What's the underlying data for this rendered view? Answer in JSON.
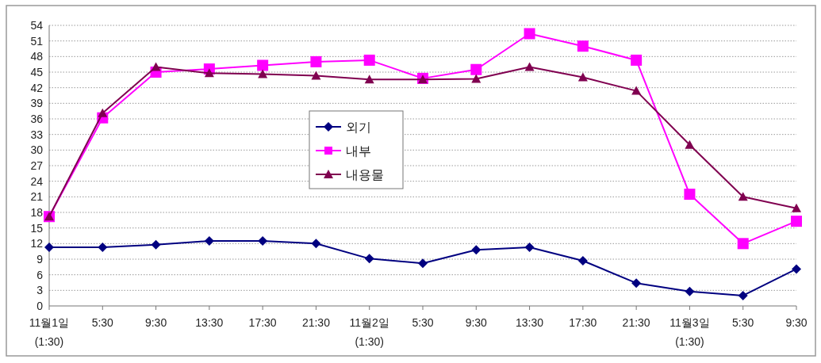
{
  "chart_data": {
    "type": "line",
    "categories": [
      "11월1일 (1:30)",
      "5:30",
      "9:30",
      "13:30",
      "17:30",
      "21:30",
      "11월2일 (1:30)",
      "5:30",
      "9:30",
      "13:30",
      "17:30",
      "21:30",
      "11월3일 (1:30)",
      "5:30",
      "9:30"
    ],
    "series": [
      {
        "name": "외기",
        "color": "#000080",
        "marker": "diamond",
        "values": [
          11.3,
          11.3,
          11.8,
          12.5,
          12.5,
          12.0,
          9.1,
          8.2,
          10.8,
          11.3,
          8.7,
          4.4,
          2.8,
          2.0,
          7.1
        ]
      },
      {
        "name": "내부",
        "color": "#ff00ff",
        "marker": "square",
        "values": [
          17.2,
          36.2,
          45.0,
          45.6,
          46.3,
          47.0,
          47.3,
          43.8,
          45.5,
          52.4,
          50.0,
          47.3,
          21.5,
          12.0,
          16.3
        ]
      },
      {
        "name": "내용물",
        "color": "#800050",
        "marker": "triangle",
        "values": [
          17.2,
          37.1,
          46.0,
          44.8,
          44.6,
          44.3,
          43.6,
          43.6,
          43.7,
          46.0,
          44.0,
          41.4,
          31.0,
          21.0,
          18.8
        ]
      }
    ],
    "ylim": [
      0,
      54
    ],
    "yticks": [
      0,
      3,
      6,
      9,
      12,
      15,
      18,
      21,
      24,
      27,
      30,
      33,
      36,
      39,
      42,
      45,
      48,
      51,
      54
    ],
    "grid": "y",
    "legend": "center"
  }
}
